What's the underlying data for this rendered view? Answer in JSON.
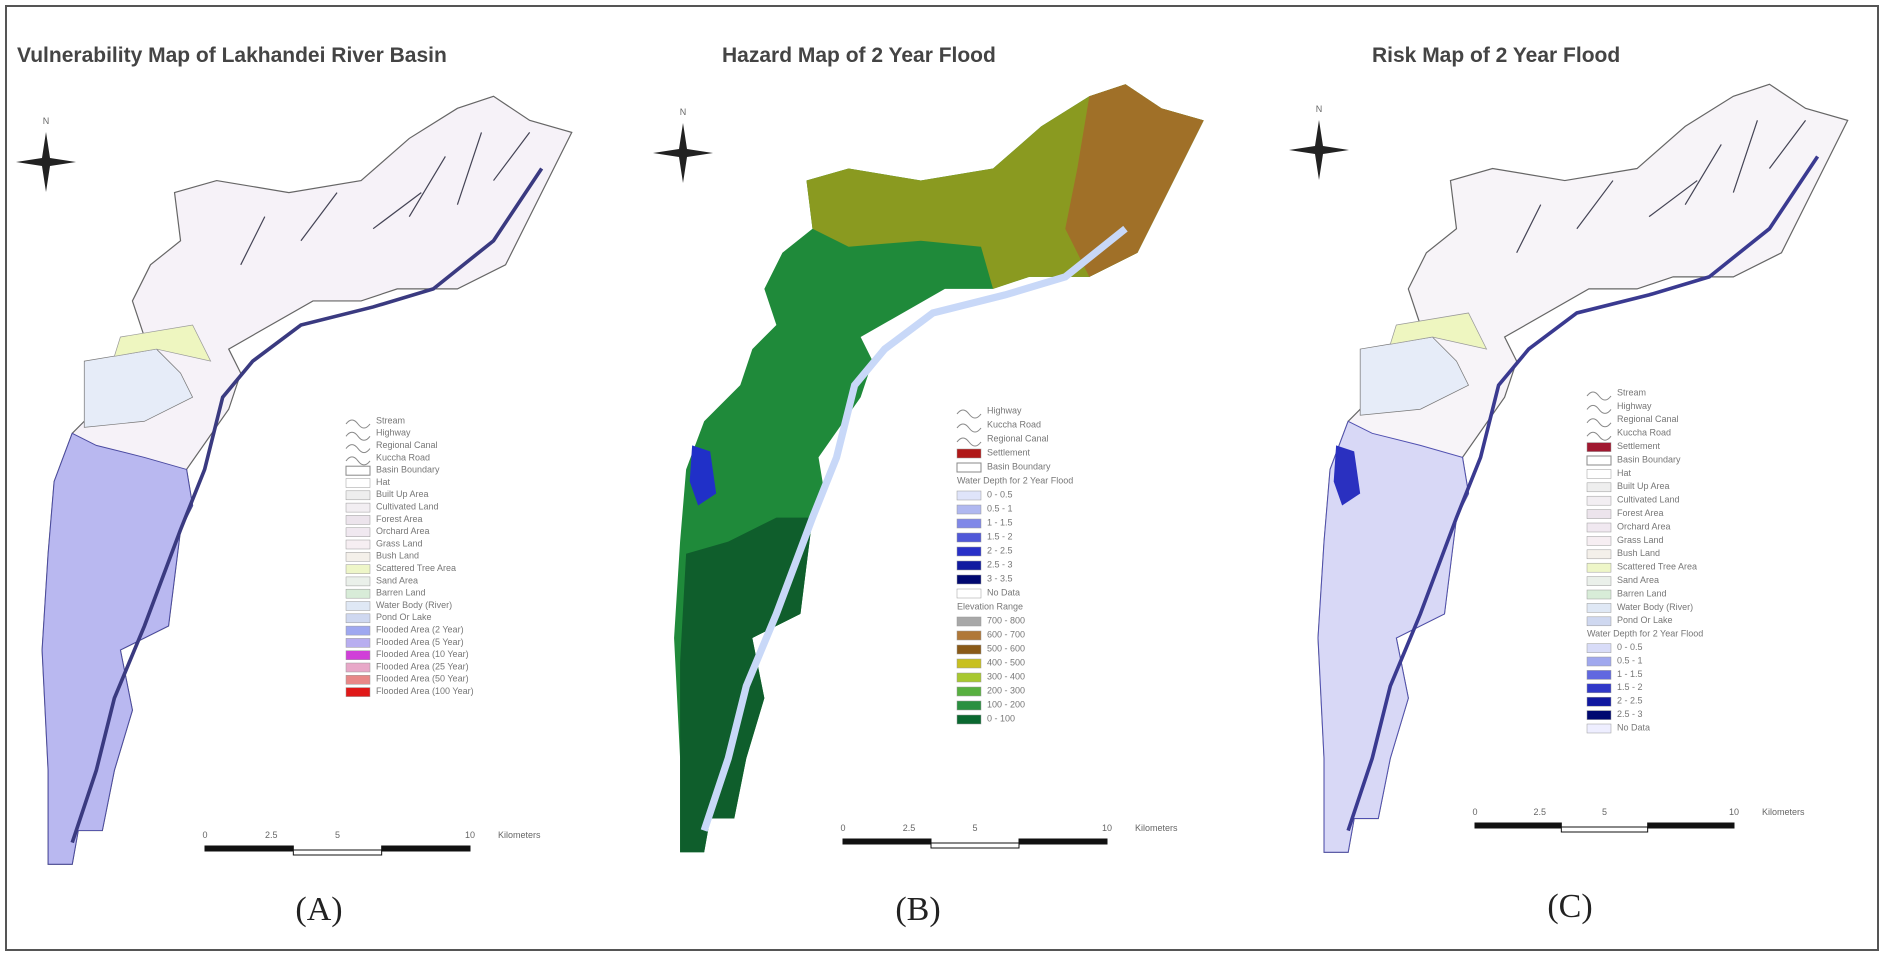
{
  "panels": [
    {
      "title": "Vulnerability Map of Lakhandei River Basin",
      "label": "(A)",
      "north": "N",
      "legend": [
        "Stream",
        "Highway",
        "Regional Canal",
        "Kuccha Road",
        "Basin Boundary",
        "Hat",
        "Built Up Area",
        "Cultivated Land",
        "Forest Area",
        "Orchard Area",
        "Grass Land",
        "Bush Land",
        "Scattered Tree Area",
        "Sand Area",
        "Barren Land",
        "Water Body (River)",
        "Pond Or Lake",
        "Flooded Area (2 Year)",
        "Flooded Area (5 Year)",
        "Flooded Area (10 Year)",
        "Flooded Area (25 Year)",
        "Flooded Area (50 Year)",
        "Flooded Area (100 Year)"
      ],
      "scale": [
        "0",
        "2.5",
        "5",
        "10",
        "Kilometers"
      ]
    },
    {
      "title": "Hazard Map of 2 Year Flood",
      "label": "(B)",
      "north": "N",
      "legend": [
        "Highway",
        "Kuccha Road",
        "Regional Canal",
        "Settlement",
        "Basin Boundary",
        "Water Depth for 2 Year Flood",
        "0 - 0.5",
        "0.5 - 1",
        "1 - 1.5",
        "1.5 - 2",
        "2 - 2.5",
        "2.5 - 3",
        "3 - 3.5",
        "No Data",
        "Elevation Range",
        "700 - 800",
        "600 - 700",
        "500 - 600",
        "400 - 500",
        "300 - 400",
        "200 - 300",
        "100 - 200",
        "0 - 100"
      ],
      "scale": [
        "0",
        "2.5",
        "5",
        "10",
        "Kilometers"
      ]
    },
    {
      "title": "Risk Map of 2 Year Flood",
      "label": "(C)",
      "north": "N",
      "legend": [
        "Stream",
        "Highway",
        "Regional Canal",
        "Kuccha Road",
        "Settlement",
        "Basin Boundary",
        "Hat",
        "Built Up Area",
        "Cultivated Land",
        "Forest Area",
        "Orchard Area",
        "Grass Land",
        "Bush Land",
        "Scattered Tree Area",
        "Sand Area",
        "Barren Land",
        "Water Body (River)",
        "Pond Or Lake",
        "Water Depth for 2 Year Flood",
        "0 - 0.5",
        "0.5 - 1",
        "1 - 1.5",
        "1.5 - 2",
        "2 - 2.5",
        "2.5 - 3",
        "No Data"
      ],
      "scale": [
        "0",
        "2.5",
        "5",
        "10",
        "Kilometers"
      ]
    }
  ]
}
